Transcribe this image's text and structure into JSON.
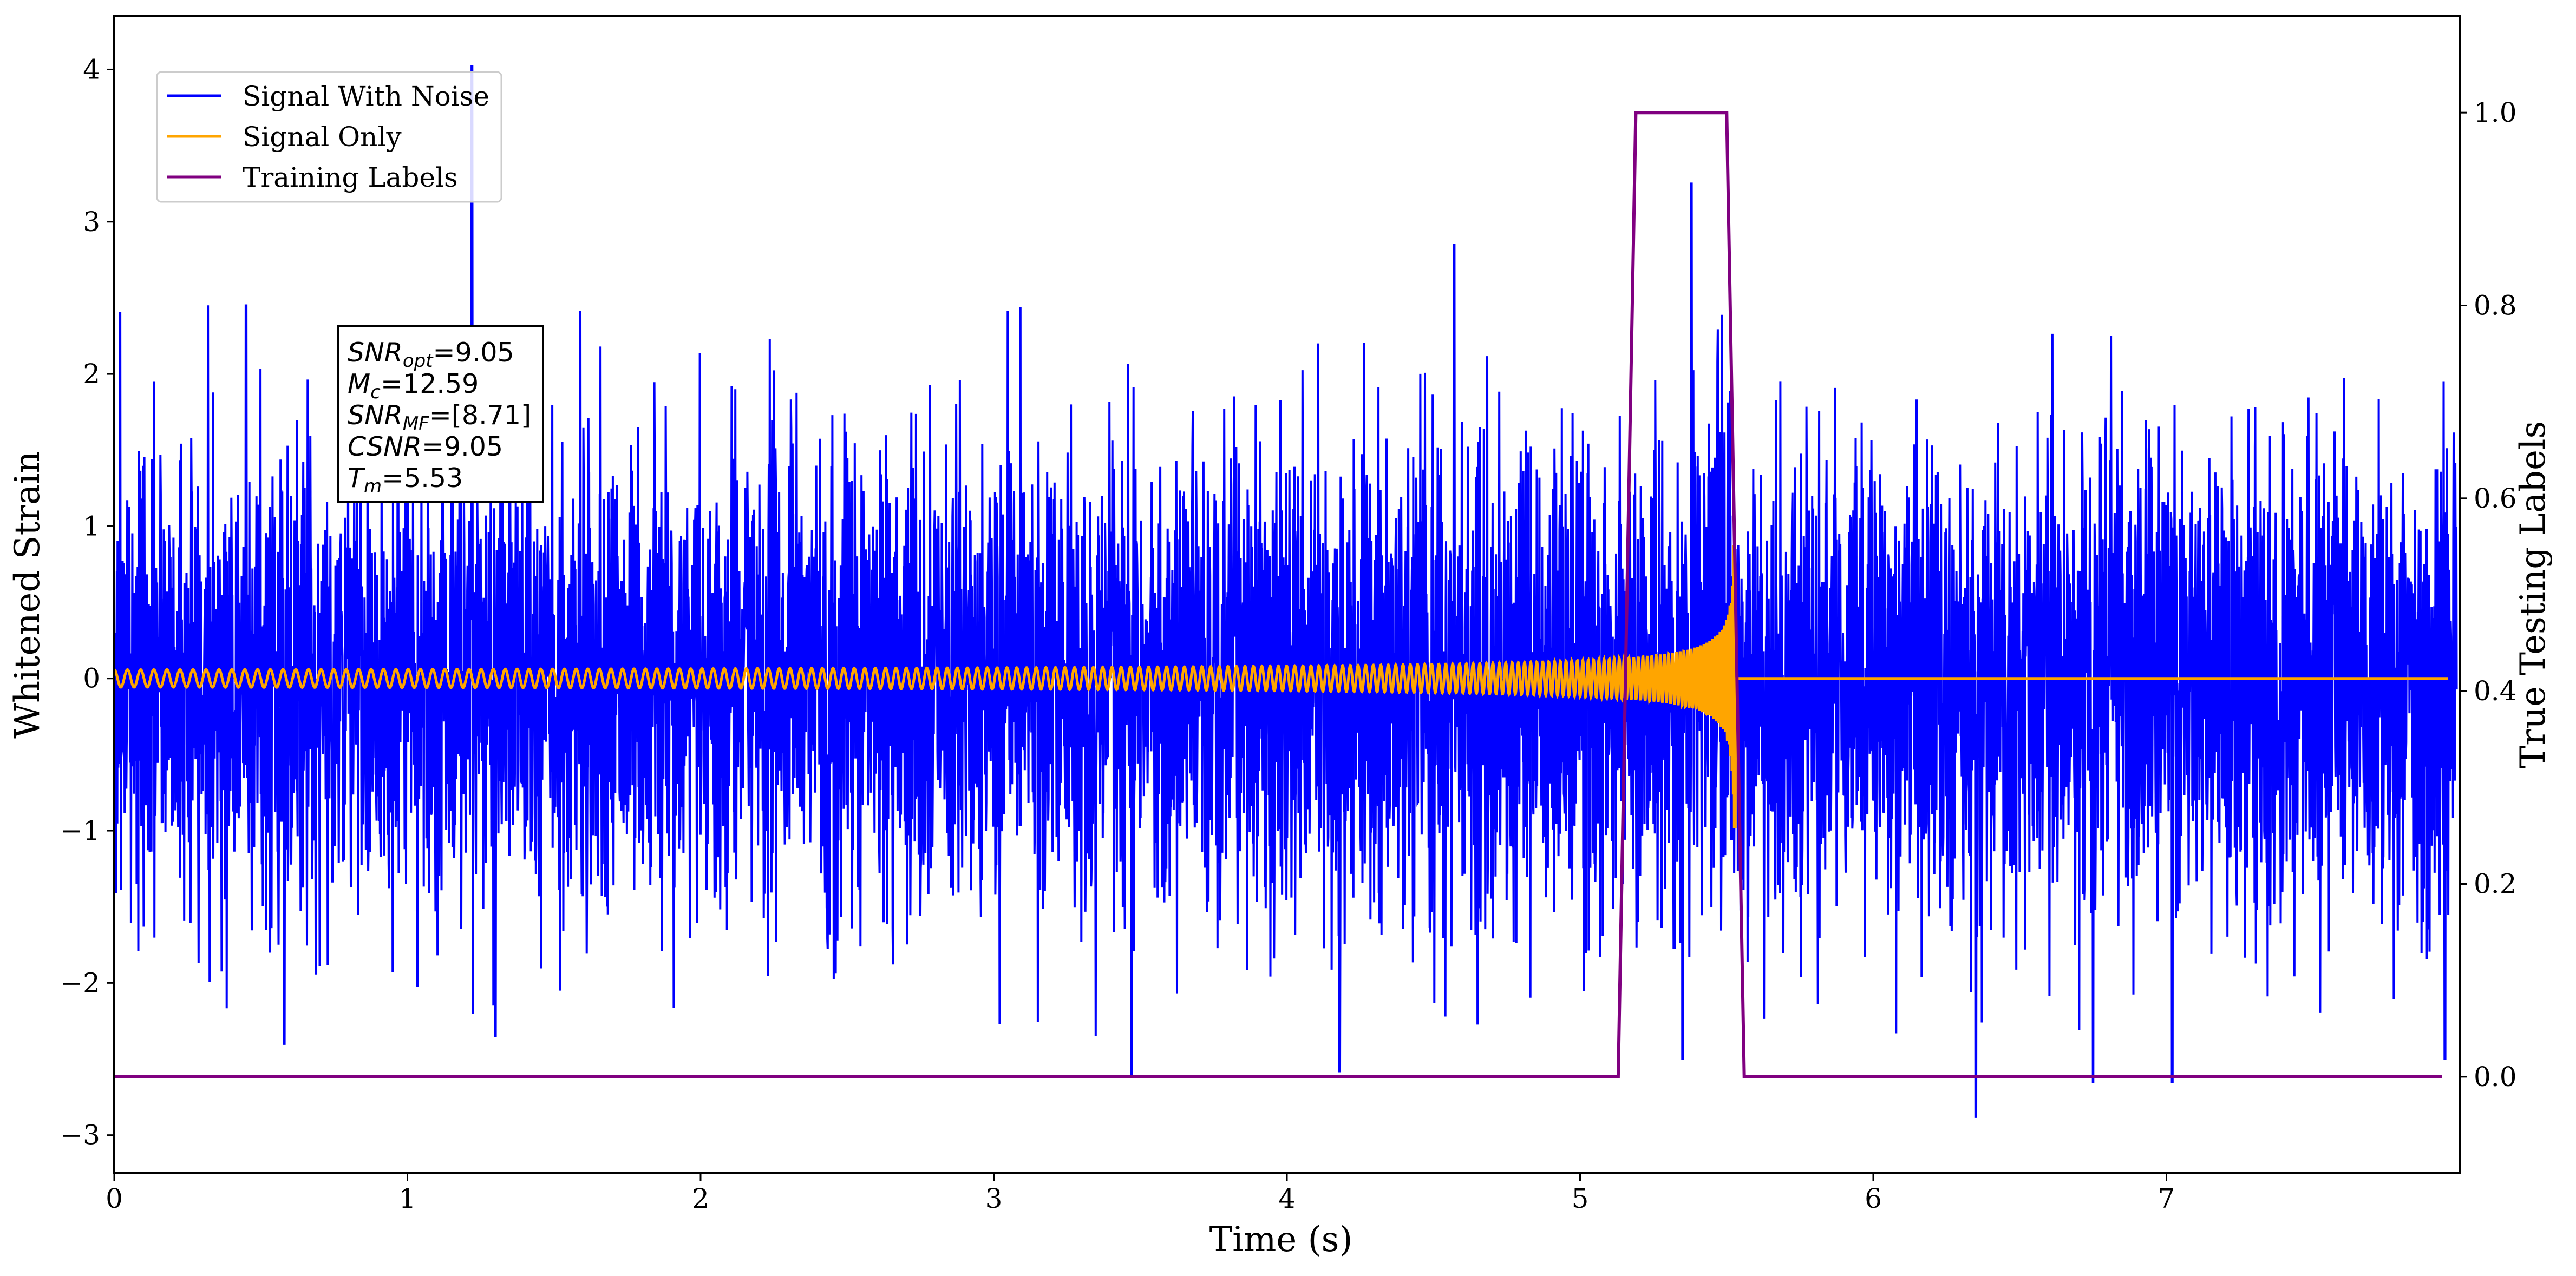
{
  "chart_data": {
    "type": "line",
    "title": "",
    "xlabel": "Time (s)",
    "ylabel": "Whitened Strain",
    "y2label": "True Testing Labels",
    "xlim": [
      0,
      8.0
    ],
    "ylim": [
      -3.25,
      4.35
    ],
    "y2lim": [
      -0.1,
      1.1
    ],
    "x_ticks": [
      0,
      1,
      2,
      3,
      4,
      5,
      6,
      7
    ],
    "x_tick_labels": [
      "0",
      "1",
      "2",
      "3",
      "4",
      "5",
      "6",
      "7"
    ],
    "y_ticks": [
      4,
      3,
      2,
      1,
      0,
      -1,
      -2,
      -3
    ],
    "y_tick_labels": [
      "4",
      "3",
      "2",
      "1",
      "0",
      "−1",
      "−2",
      "−3"
    ],
    "y2_ticks": [
      1.0,
      0.8,
      0.6,
      0.4,
      0.2,
      0.0
    ],
    "y2_tick_labels": [
      "1.0",
      "0.8",
      "0.6",
      "0.4",
      "0.2",
      "0.0"
    ],
    "grid": false,
    "legend_position": "top-left",
    "series": [
      {
        "name": "Signal With Noise",
        "color": "#0000ff",
        "axis": "left",
        "kind": "noise-plus-chirp",
        "noise_std": 0.75,
        "extremes": [
          {
            "x": 0.02,
            "y": 2.4
          },
          {
            "x": 0.45,
            "y": 2.45
          },
          {
            "x": 0.58,
            "y": -2.4
          },
          {
            "x": 1.22,
            "y": 4.02
          },
          {
            "x": 1.3,
            "y": -2.35
          },
          {
            "x": 3.47,
            "y": -2.6
          },
          {
            "x": 4.18,
            "y": -2.58
          },
          {
            "x": 4.57,
            "y": 2.85
          },
          {
            "x": 5.38,
            "y": 3.25
          },
          {
            "x": 5.35,
            "y": -2.5
          },
          {
            "x": 6.35,
            "y": -2.88
          },
          {
            "x": 6.75,
            "y": -2.65
          },
          {
            "x": 7.02,
            "y": -2.65
          },
          {
            "x": 7.95,
            "y": -2.5
          }
        ]
      },
      {
        "name": "Signal Only",
        "color": "#ffa500",
        "axis": "left",
        "kind": "chirp",
        "merger_time": 5.53,
        "early_amplitude": 0.03,
        "peak_amplitude": 1.05,
        "post_merger_value": 0.0
      },
      {
        "name": "Training Labels",
        "color": "#800080",
        "axis": "right",
        "kind": "step",
        "x": [
          0,
          5.13,
          5.19,
          5.5,
          5.56,
          7.94
        ],
        "y": [
          0,
          0,
          1,
          1,
          0,
          0
        ]
      }
    ],
    "annotation": {
      "lines": [
        {
          "base": "SNR",
          "sub": "opt",
          "value": "=9.05"
        },
        {
          "base": "M",
          "sub": "c",
          "value": "=12.59"
        },
        {
          "base": "SNR",
          "sub": "MF",
          "value": "=[8.71]"
        },
        {
          "base": "CSNR",
          "sub": "",
          "value": "=9.05"
        },
        {
          "base": "T",
          "sub": "m",
          "value": "=5.53"
        }
      ]
    }
  }
}
